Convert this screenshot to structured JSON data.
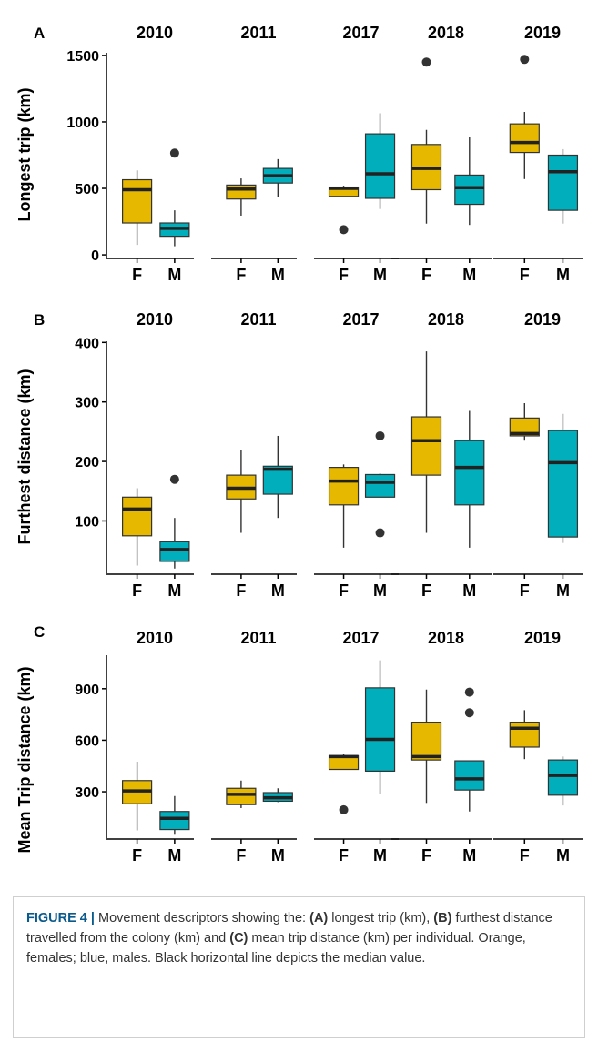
{
  "colors": {
    "female": "#E7B800",
    "male": "#00AFBB",
    "median": "#222222",
    "outlier": "#333333",
    "axis": "#000000"
  },
  "chart_data": [
    {
      "type": "boxplot",
      "panel": "A",
      "ylabel": "Longest trip (km)",
      "ylim": [
        -20,
        1520
      ],
      "yticks": [
        0,
        500,
        1000,
        1500
      ],
      "facets": [
        "2010",
        "2011",
        "2017",
        "2018",
        "2019"
      ],
      "categories": [
        "F",
        "M"
      ],
      "boxes": [
        {
          "year": "2010",
          "sex": "F",
          "whislo": 75,
          "q1": 240,
          "med": 490,
          "q3": 565,
          "whishi": 635,
          "outliers": []
        },
        {
          "year": "2010",
          "sex": "M",
          "whislo": 65,
          "q1": 140,
          "med": 200,
          "q3": 240,
          "whishi": 335,
          "outliers": [
            765
          ]
        },
        {
          "year": "2011",
          "sex": "F",
          "whislo": 295,
          "q1": 420,
          "med": 495,
          "q3": 525,
          "whishi": 575,
          "outliers": []
        },
        {
          "year": "2011",
          "sex": "M",
          "whislo": 435,
          "q1": 540,
          "med": 595,
          "q3": 650,
          "whishi": 720,
          "outliers": []
        },
        {
          "year": "2017",
          "sex": "F",
          "whislo": 440,
          "q1": 440,
          "med": 500,
          "q3": 510,
          "whishi": 520,
          "outliers": [
            190
          ]
        },
        {
          "year": "2017",
          "sex": "M",
          "whislo": 345,
          "q1": 425,
          "med": 610,
          "q3": 910,
          "whishi": 1065,
          "outliers": []
        },
        {
          "year": "2018",
          "sex": "F",
          "whislo": 235,
          "q1": 490,
          "med": 650,
          "q3": 830,
          "whishi": 940,
          "outliers": [
            1450
          ]
        },
        {
          "year": "2018",
          "sex": "M",
          "whislo": 225,
          "q1": 380,
          "med": 505,
          "q3": 600,
          "whishi": 885,
          "outliers": []
        },
        {
          "year": "2019",
          "sex": "F",
          "whislo": 570,
          "q1": 770,
          "med": 845,
          "q3": 985,
          "whishi": 1075,
          "outliers": [
            1470
          ]
        },
        {
          "year": "2019",
          "sex": "M",
          "whislo": 235,
          "q1": 335,
          "med": 625,
          "q3": 750,
          "whishi": 795,
          "outliers": []
        }
      ]
    },
    {
      "type": "boxplot",
      "panel": "B",
      "ylabel": "Furthest distance (km)",
      "ylim": [
        12,
        402
      ],
      "yticks": [
        100,
        200,
        300,
        400
      ],
      "facets": [
        "2010",
        "2011",
        "2017",
        "2018",
        "2019"
      ],
      "categories": [
        "F",
        "M"
      ],
      "boxes": [
        {
          "year": "2010",
          "sex": "F",
          "whislo": 25,
          "q1": 75,
          "med": 120,
          "q3": 140,
          "whishi": 155,
          "outliers": []
        },
        {
          "year": "2010",
          "sex": "M",
          "whislo": 20,
          "q1": 32,
          "med": 52,
          "q3": 65,
          "whishi": 105,
          "outliers": [
            170
          ]
        },
        {
          "year": "2011",
          "sex": "F",
          "whislo": 80,
          "q1": 137,
          "med": 155,
          "q3": 177,
          "whishi": 220,
          "outliers": []
        },
        {
          "year": "2011",
          "sex": "M",
          "whislo": 105,
          "q1": 145,
          "med": 187,
          "q3": 192,
          "whishi": 243,
          "outliers": []
        },
        {
          "year": "2017",
          "sex": "F",
          "whislo": 55,
          "q1": 127,
          "med": 167,
          "q3": 190,
          "whishi": 195,
          "outliers": []
        },
        {
          "year": "2017",
          "sex": "M",
          "whislo": 140,
          "q1": 140,
          "med": 165,
          "q3": 178,
          "whishi": 180,
          "outliers": [
            243,
            80
          ]
        },
        {
          "year": "2018",
          "sex": "F",
          "whislo": 80,
          "q1": 177,
          "med": 235,
          "q3": 275,
          "whishi": 385,
          "outliers": []
        },
        {
          "year": "2018",
          "sex": "M",
          "whislo": 55,
          "q1": 127,
          "med": 190,
          "q3": 235,
          "whishi": 285,
          "outliers": []
        },
        {
          "year": "2019",
          "sex": "F",
          "whislo": 235,
          "q1": 243,
          "med": 247,
          "q3": 273,
          "whishi": 298,
          "outliers": []
        },
        {
          "year": "2019",
          "sex": "M",
          "whislo": 63,
          "q1": 73,
          "med": 198,
          "q3": 252,
          "whishi": 280,
          "outliers": []
        }
      ]
    },
    {
      "type": "boxplot",
      "panel": "C",
      "ylabel": "Mean Trip distance (km)",
      "ylim": [
        30,
        1095
      ],
      "yticks": [
        300,
        600,
        900
      ],
      "facets": [
        "2010",
        "2011",
        "2017",
        "2018",
        "2019"
      ],
      "categories": [
        "F",
        "M"
      ],
      "boxes": [
        {
          "year": "2010",
          "sex": "F",
          "whislo": 75,
          "q1": 230,
          "med": 305,
          "q3": 365,
          "whishi": 475,
          "outliers": []
        },
        {
          "year": "2010",
          "sex": "M",
          "whislo": 55,
          "q1": 80,
          "med": 145,
          "q3": 185,
          "whishi": 275,
          "outliers": []
        },
        {
          "year": "2011",
          "sex": "F",
          "whislo": 205,
          "q1": 225,
          "med": 285,
          "q3": 320,
          "whishi": 365,
          "outliers": []
        },
        {
          "year": "2011",
          "sex": "M",
          "whislo": 240,
          "q1": 245,
          "med": 265,
          "q3": 295,
          "whishi": 320,
          "outliers": []
        },
        {
          "year": "2017",
          "sex": "F",
          "whislo": 430,
          "q1": 430,
          "med": 505,
          "q3": 510,
          "whishi": 520,
          "outliers": [
            195
          ]
        },
        {
          "year": "2017",
          "sex": "M",
          "whislo": 285,
          "q1": 420,
          "med": 605,
          "q3": 905,
          "whishi": 1065,
          "outliers": []
        },
        {
          "year": "2018",
          "sex": "F",
          "whislo": 235,
          "q1": 485,
          "med": 505,
          "q3": 705,
          "whishi": 895,
          "outliers": []
        },
        {
          "year": "2018",
          "sex": "M",
          "whislo": 185,
          "q1": 310,
          "med": 375,
          "q3": 480,
          "whishi": 480,
          "outliers": [
            760,
            880
          ]
        },
        {
          "year": "2019",
          "sex": "F",
          "whislo": 490,
          "q1": 560,
          "med": 670,
          "q3": 705,
          "whishi": 775,
          "outliers": []
        },
        {
          "year": "2019",
          "sex": "M",
          "whislo": 220,
          "q1": 280,
          "med": 395,
          "q3": 485,
          "whishi": 505,
          "outliers": []
        }
      ]
    }
  ],
  "caption": {
    "label": "FIGURE 4 |",
    "segments": [
      {
        "text": " Movement descriptors showing the: ",
        "bold": false
      },
      {
        "text": "(A)",
        "bold": true
      },
      {
        "text": " longest trip (km), ",
        "bold": false
      },
      {
        "text": "(B)",
        "bold": true
      },
      {
        "text": " furthest distance travelled from the colony (km) and ",
        "bold": false
      },
      {
        "text": "(C)",
        "bold": true
      },
      {
        "text": " mean trip distance (km) per individual. Orange, females; blue, males. Black horizontal line depicts the median value.",
        "bold": false
      }
    ]
  }
}
